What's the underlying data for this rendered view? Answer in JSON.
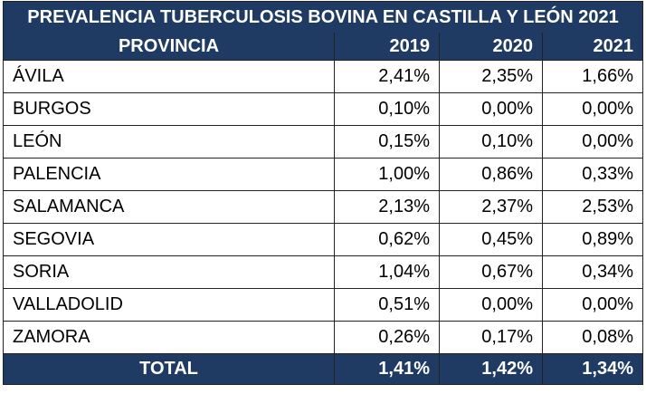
{
  "table": {
    "title": "PREVALENCIA TUBERCULOSIS BOVINA EN CASTILLA Y LEÓN 2021",
    "headers": [
      "PROVINCIA",
      "2019",
      "2020",
      "2021"
    ],
    "rows": [
      [
        "ÁVILA",
        "2,41%",
        "2,35%",
        "1,66%"
      ],
      [
        "BURGOS",
        "0,10%",
        "0,00%",
        "0,00%"
      ],
      [
        "LEÓN",
        "0,15%",
        "0,10%",
        "0,00%"
      ],
      [
        "PALENCIA",
        "1,00%",
        "0,86%",
        "0,33%"
      ],
      [
        "SALAMANCA",
        "2,13%",
        "2,37%",
        "2,53%"
      ],
      [
        "SEGOVIA",
        "0,62%",
        "0,45%",
        "0,89%"
      ],
      [
        "SORIA",
        "1,04%",
        "0,67%",
        "0,34%"
      ],
      [
        "VALLADOLID",
        "0,51%",
        "0,00%",
        "0,00%"
      ],
      [
        "ZAMORA",
        "0,26%",
        "0,17%",
        "0,08%"
      ]
    ],
    "total": [
      "TOTAL",
      "1,41%",
      "1,42%",
      "1,34%"
    ]
  },
  "colors": {
    "header_bg": "#1f3b63",
    "header_text": "#ffffff"
  }
}
